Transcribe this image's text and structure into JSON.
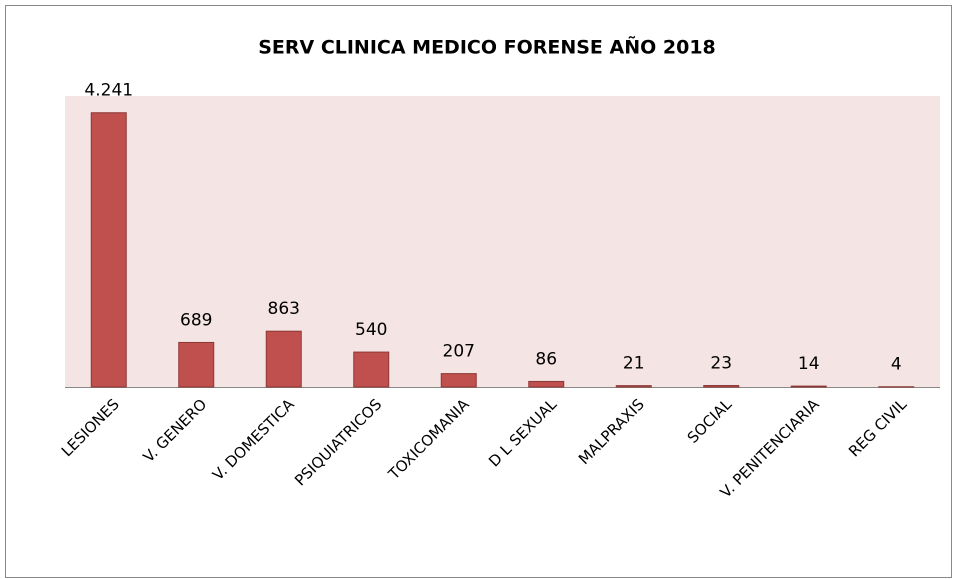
{
  "chart_data": {
    "type": "bar",
    "title": "SERV CLINICA MEDICO FORENSE AÑO 2018",
    "categories": [
      "LESIONES",
      "V.  GENERO",
      "V. DOMESTICA",
      "PSIQUIATRICOS",
      "TOXICOMANIA",
      "D L SEXUAL",
      "MALPRAXIS",
      "SOCIAL",
      "V. PENITENCIARIA",
      "REG CIVIL"
    ],
    "values": [
      4241,
      689,
      863,
      540,
      207,
      86,
      21,
      23,
      14,
      4
    ],
    "value_labels": [
      "4.241",
      "689",
      "863",
      "540",
      "207",
      "86",
      "21",
      "23",
      "14",
      "4"
    ],
    "color": "#c0504d",
    "ylim": [
      0,
      4500
    ]
  }
}
